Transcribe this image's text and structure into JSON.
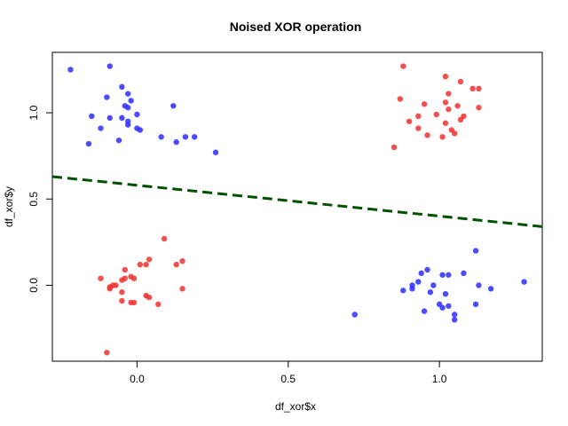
{
  "chart_data": {
    "type": "scatter",
    "title": "Noised XOR operation",
    "xlabel": "df_xor$x",
    "ylabel": "df_xor$y",
    "xlim": [
      -0.28,
      1.34
    ],
    "ylim": [
      -0.44,
      1.35
    ],
    "x_ticks": [
      0.0,
      0.5,
      1.0
    ],
    "x_tick_labels": [
      "0.0",
      "0.5",
      "1.0"
    ],
    "y_ticks": [
      0.0,
      0.5,
      1.0
    ],
    "y_tick_labels": [
      "0.0",
      "0.5",
      "1.0"
    ],
    "grid": false,
    "colors": {
      "blue": "#2b2bff",
      "red": "#f03030",
      "line": "#005000"
    },
    "series": [
      {
        "color": "blue",
        "points": [
          [
            -0.22,
            1.25
          ],
          [
            -0.09,
            1.27
          ],
          [
            -0.05,
            1.15
          ],
          [
            -0.03,
            1.11
          ],
          [
            -0.1,
            1.09
          ],
          [
            -0.02,
            1.07
          ],
          [
            -0.04,
            1.04
          ],
          [
            -0.03,
            1.03
          ],
          [
            -0.15,
            0.98
          ],
          [
            -0.09,
            0.97
          ],
          [
            -0.05,
            0.97
          ],
          [
            -0.03,
            0.95
          ],
          [
            0.0,
            0.99
          ],
          [
            -0.12,
            0.91
          ],
          [
            -0.03,
            0.93
          ],
          [
            0.0,
            0.91
          ],
          [
            0.01,
            0.9
          ],
          [
            0.12,
            1.04
          ],
          [
            -0.16,
            0.82
          ],
          [
            -0.06,
            0.84
          ],
          [
            0.08,
            0.86
          ],
          [
            0.13,
            0.83
          ],
          [
            0.16,
            0.86
          ],
          [
            0.19,
            0.86
          ],
          [
            0.26,
            0.77
          ],
          [
            1.12,
            0.2
          ],
          [
            0.94,
            0.07
          ],
          [
            0.96,
            0.09
          ],
          [
            1.01,
            0.06
          ],
          [
            1.03,
            0.06
          ],
          [
            1.08,
            0.07
          ],
          [
            0.91,
            0.0
          ],
          [
            0.93,
            0.02
          ],
          [
            0.98,
            0.0
          ],
          [
            0.88,
            -0.03
          ],
          [
            0.91,
            -0.02
          ],
          [
            0.97,
            -0.04
          ],
          [
            1.02,
            -0.05
          ],
          [
            1.13,
            0.0
          ],
          [
            1.17,
            -0.02
          ],
          [
            1.28,
            0.02
          ],
          [
            1.0,
            -0.11
          ],
          [
            1.01,
            -0.13
          ],
          [
            1.03,
            -0.12
          ],
          [
            1.12,
            -0.11
          ],
          [
            0.95,
            -0.15
          ],
          [
            1.05,
            -0.17
          ],
          [
            1.05,
            -0.2
          ],
          [
            0.72,
            -0.17
          ]
        ]
      },
      {
        "color": "red",
        "points": [
          [
            0.88,
            1.27
          ],
          [
            1.02,
            1.21
          ],
          [
            1.07,
            1.18
          ],
          [
            1.03,
            1.11
          ],
          [
            1.11,
            1.14
          ],
          [
            1.13,
            1.14
          ],
          [
            0.87,
            1.08
          ],
          [
            0.95,
            1.05
          ],
          [
            1.02,
            1.06
          ],
          [
            1.06,
            1.04
          ],
          [
            0.93,
            0.98
          ],
          [
            0.99,
            0.99
          ],
          [
            1.03,
            1.02
          ],
          [
            1.08,
            0.98
          ],
          [
            1.07,
            0.96
          ],
          [
            1.13,
            1.03
          ],
          [
            0.9,
            0.95
          ],
          [
            0.93,
            0.91
          ],
          [
            1.02,
            0.94
          ],
          [
            1.04,
            0.9
          ],
          [
            1.01,
            0.86
          ],
          [
            0.96,
            0.87
          ],
          [
            1.05,
            0.88
          ],
          [
            0.85,
            0.8
          ],
          [
            0.09,
            0.27
          ],
          [
            0.15,
            0.14
          ],
          [
            0.13,
            0.12
          ],
          [
            0.04,
            0.15
          ],
          [
            0.01,
            0.12
          ],
          [
            0.03,
            0.12
          ],
          [
            -0.04,
            0.09
          ],
          [
            -0.12,
            0.04
          ],
          [
            -0.05,
            0.03
          ],
          [
            -0.04,
            0.04
          ],
          [
            -0.02,
            0.05
          ],
          [
            -0.01,
            0.04
          ],
          [
            -0.07,
            0.0
          ],
          [
            -0.08,
            0.0
          ],
          [
            -0.09,
            -0.01
          ],
          [
            -0.09,
            -0.02
          ],
          [
            -0.05,
            -0.04
          ],
          [
            0.03,
            -0.06
          ],
          [
            0.04,
            -0.07
          ],
          [
            -0.05,
            -0.09
          ],
          [
            -0.02,
            -0.1
          ],
          [
            -0.01,
            -0.1
          ],
          [
            0.07,
            -0.11
          ],
          [
            0.15,
            -0.02
          ],
          [
            -0.1,
            -0.39
          ]
        ]
      }
    ],
    "line": {
      "style": "dashed",
      "color": "line",
      "points": [
        [
          -0.28,
          0.63
        ],
        [
          1.34,
          0.34
        ]
      ]
    }
  }
}
